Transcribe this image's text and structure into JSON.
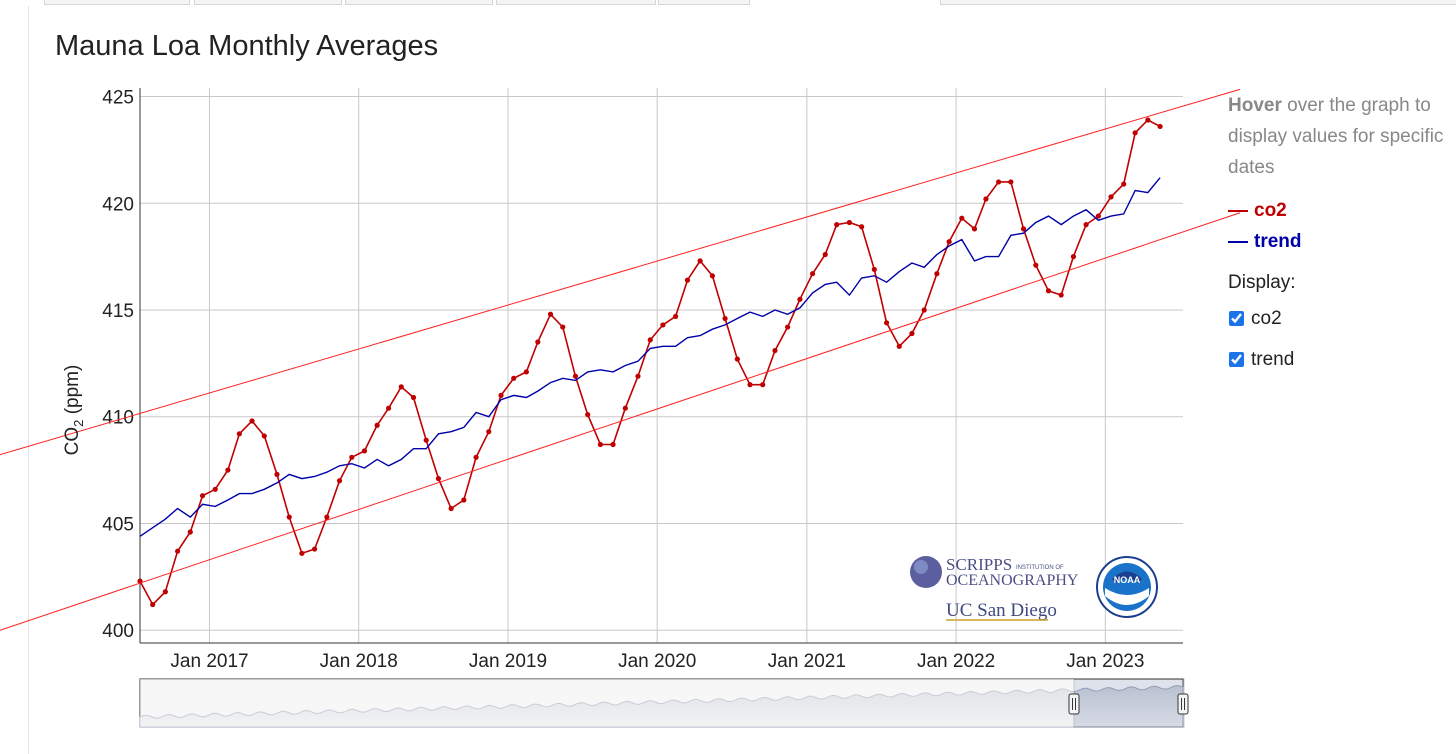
{
  "window": {
    "tabs": [
      "",
      "",
      "",
      "",
      ""
    ]
  },
  "chart_title": "Mauna Loa Monthly Averages",
  "legend": {
    "hint_bold": "Hover",
    "hint_rest": " over the graph to display values for specific dates",
    "items": [
      {
        "label": "co2",
        "color": "#c00000"
      },
      {
        "label": "trend",
        "color": "#0000a8"
      }
    ],
    "display_label": "Display:",
    "checkboxes": [
      {
        "label": "co2",
        "checked": true
      },
      {
        "label": "trend",
        "checked": true
      }
    ]
  },
  "logos": {
    "scripps_line1": "SCRIPPS",
    "scripps_line1_small": "INSTITUTION OF",
    "scripps_line2": "OCEANOGRAPHY",
    "ucsd": "UC San Diego",
    "noaa": "NOAA"
  },
  "colors": {
    "co2": "#c00000",
    "trend": "#0000a8",
    "envelope": "#ff2020",
    "grid": "#c8c8c8"
  },
  "range_selector": {
    "selected_from": "Jul 2016",
    "selected_to": "May 2023"
  },
  "chart_data": {
    "type": "line",
    "title": "Mauna Loa Monthly Averages",
    "ylabel": "CO2 (ppm)",
    "ylim": [
      399.4,
      425.4
    ],
    "xlim": [
      "2016-07-15",
      "2023-07-10"
    ],
    "y_ticks": [
      400,
      405,
      410,
      415,
      420,
      425
    ],
    "x_ticks": [
      "Jan 2017",
      "Jan 2018",
      "Jan 2019",
      "Jan 2020",
      "Jan 2021",
      "Jan 2022",
      "Jan 2023"
    ],
    "grid": true,
    "legend_position": "right",
    "x_start_month": "2016-07",
    "series": [
      {
        "name": "co2",
        "markers": true,
        "values": [
          402.3,
          401.2,
          401.8,
          403.7,
          404.6,
          406.3,
          406.6,
          407.5,
          409.2,
          409.8,
          409.1,
          407.3,
          405.3,
          403.6,
          403.8,
          405.3,
          407.0,
          408.1,
          408.4,
          409.6,
          410.4,
          411.4,
          410.9,
          408.9,
          407.1,
          405.7,
          406.1,
          408.1,
          409.3,
          411.0,
          411.8,
          412.1,
          413.5,
          414.8,
          414.2,
          411.9,
          410.1,
          408.7,
          408.7,
          410.4,
          411.9,
          413.6,
          414.3,
          414.7,
          416.4,
          417.3,
          416.6,
          414.6,
          412.7,
          411.5,
          411.5,
          413.1,
          414.2,
          415.5,
          416.7,
          417.6,
          419.0,
          419.1,
          418.9,
          416.9,
          414.4,
          413.3,
          413.9,
          415.0,
          416.7,
          418.2,
          419.3,
          418.8,
          420.2,
          421.0,
          421.0,
          418.8,
          417.1,
          415.9,
          415.7,
          417.5,
          419.0,
          419.4,
          420.3,
          420.9,
          423.3,
          423.9,
          423.6
        ]
      },
      {
        "name": "trend",
        "markers": false,
        "values": [
          404.4,
          404.8,
          405.2,
          405.7,
          405.3,
          405.9,
          405.8,
          406.1,
          406.4,
          406.4,
          406.6,
          406.9,
          407.3,
          407.1,
          407.2,
          407.4,
          407.7,
          407.8,
          407.6,
          408.0,
          407.7,
          408.0,
          408.5,
          408.5,
          409.2,
          409.3,
          409.5,
          410.2,
          410.0,
          410.8,
          411.0,
          410.9,
          411.2,
          411.6,
          411.8,
          411.7,
          412.1,
          412.2,
          412.1,
          412.4,
          412.6,
          413.2,
          413.3,
          413.3,
          413.7,
          413.8,
          414.1,
          414.3,
          414.6,
          414.9,
          414.7,
          415.0,
          414.8,
          415.1,
          415.8,
          416.2,
          416.3,
          415.7,
          416.5,
          416.6,
          416.3,
          416.8,
          417.2,
          417.0,
          417.6,
          418.0,
          418.3,
          417.3,
          417.5,
          417.5,
          418.5,
          418.6,
          419.1,
          419.4,
          419.0,
          419.4,
          419.7,
          419.2,
          419.4,
          419.5,
          420.6,
          420.5,
          421.2
        ]
      }
    ],
    "envelope_lines": [
      {
        "label": "upper",
        "x": [
          "2014-09-01",
          "2023-07-01"
        ],
        "y": [
          406.3,
          424.5
        ]
      },
      {
        "label": "lower",
        "x": [
          "2014-09-01",
          "2023-07-01"
        ],
        "y": [
          397.8,
          418.6
        ]
      }
    ],
    "range_selector_overview": true
  }
}
